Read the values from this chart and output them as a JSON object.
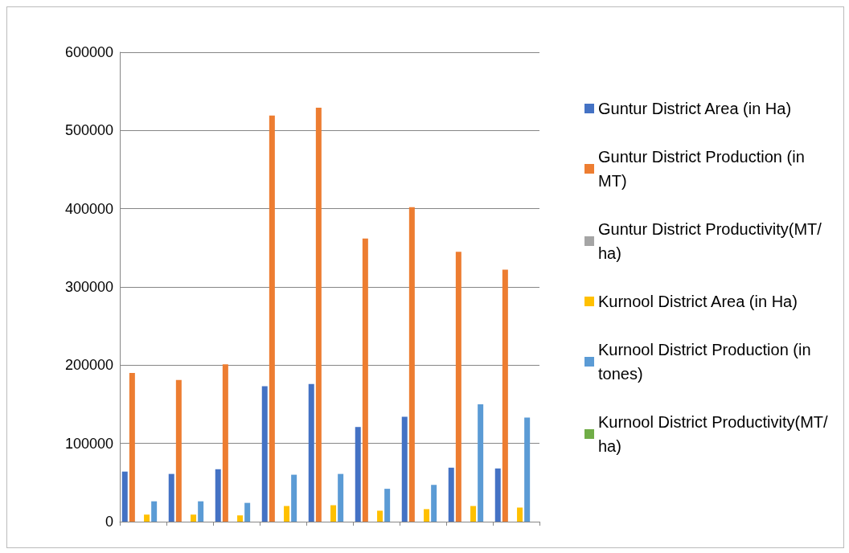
{
  "chart_data": {
    "type": "bar",
    "categories": [
      null,
      null,
      null,
      null,
      null,
      null,
      null,
      null,
      null
    ],
    "series": [
      {
        "name": "Guntur District Area (in Ha)",
        "color": "#4472c4",
        "values": [
          64000,
          61000,
          67000,
          173000,
          176000,
          121000,
          134000,
          69000,
          68000
        ]
      },
      {
        "name": "Guntur District Production (in MT)",
        "color": "#ed7d31",
        "values": [
          190000,
          181000,
          201000,
          519000,
          529000,
          362000,
          402000,
          345000,
          322000
        ]
      },
      {
        "name": "Guntur District Productivity(MT/ha)",
        "color": "#a5a5a5",
        "values": [
          0,
          0,
          0,
          0,
          0,
          0,
          0,
          0,
          0
        ]
      },
      {
        "name": "Kurnool District Area (in Ha)",
        "color": "#ffc000",
        "values": [
          9000,
          9000,
          8000,
          20000,
          21000,
          14000,
          16000,
          20000,
          18000
        ]
      },
      {
        "name": "Kurnool District Production (in tones)",
        "color": "#5b9bd5",
        "values": [
          26000,
          26000,
          24000,
          60000,
          61000,
          42000,
          47000,
          150000,
          133000
        ]
      },
      {
        "name": "Kurnool District Productivity(MT/ha)",
        "color": "#70ad47",
        "values": [
          0,
          0,
          0,
          0,
          0,
          0,
          0,
          0,
          0
        ]
      }
    ],
    "ylim": [
      0,
      600000
    ],
    "yticks": [
      0,
      100000,
      200000,
      300000,
      400000,
      500000,
      600000
    ],
    "grid": "y",
    "legend": "right"
  }
}
